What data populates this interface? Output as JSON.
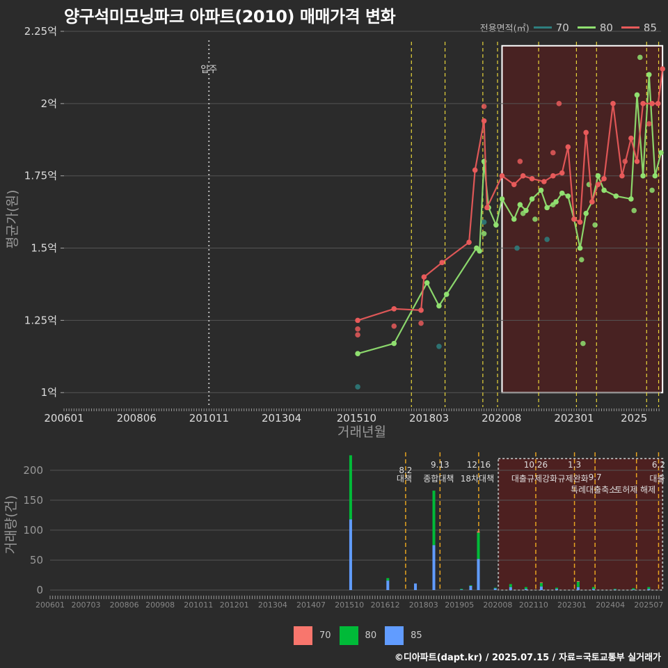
{
  "title": "양구석미모닝파크 아파트(2010) 매매가격 변화",
  "legend": {
    "title": "전용면적(㎡)",
    "items": [
      {
        "label": "70",
        "color": "#2e7f7f"
      },
      {
        "label": "80",
        "color": "#90e070"
      },
      {
        "label": "85",
        "color": "#e85a5a"
      }
    ]
  },
  "bar_legend": [
    {
      "label": "70",
      "color": "#f8766d"
    },
    {
      "label": "80",
      "color": "#00ba38"
    },
    {
      "label": "85",
      "color": "#619cff"
    }
  ],
  "credit": "©디아파트(dapt.kr) / 2025.07.15 / 자료=국토교통부 실거래가",
  "chart_data": [
    {
      "type": "line",
      "title": "양구석미모닝파크 아파트(2010) 매매가격 변화",
      "xlabel": "거래년월",
      "ylabel": "평균가(원)",
      "x_ticks": [
        "200601",
        "200806",
        "201011",
        "201304",
        "201510",
        "201803",
        "202008",
        "202301",
        "2025"
      ],
      "y_ticks": [
        "1억",
        "1.25억",
        "1.5억",
        "1.75억",
        "2억",
        "2.25억"
      ],
      "ylim": [
        0.95,
        2.25
      ],
      "y_unit": "억",
      "annotations": [
        {
          "label": "입주",
          "x": 2010.83
        }
      ],
      "policy_lines_x": [
        2017.58,
        2018.7,
        2019.96,
        2020.45,
        2021.82,
        2023.08,
        2023.75,
        2025.42,
        2025.82
      ],
      "highlight_box": {
        "x_from": 2020.6,
        "x_to": 2025.95,
        "y_from": 1.0,
        "y_to": 2.2
      },
      "series": [
        {
          "name": "70",
          "color": "#2e7f7f",
          "points": [
            {
              "x": 2015.79,
              "y": 1.02
            },
            {
              "x": 2018.5,
              "y": 1.16
            },
            {
              "x": 2020.0,
              "y": 1.59
            },
            {
              "x": 2021.1,
              "y": 1.5
            },
            {
              "x": 2022.1,
              "y": 1.53
            }
          ]
        },
        {
          "name": "80",
          "color": "#90e070",
          "line": [
            {
              "x": 2015.79,
              "y": 1.135
            },
            {
              "x": 2017.0,
              "y": 1.17
            },
            {
              "x": 2018.1,
              "y": 1.38
            },
            {
              "x": 2018.5,
              "y": 1.3
            },
            {
              "x": 2018.75,
              "y": 1.34
            },
            {
              "x": 2019.75,
              "y": 1.5
            },
            {
              "x": 2019.85,
              "y": 1.49
            },
            {
              "x": 2020.0,
              "y": 1.8
            },
            {
              "x": 2020.15,
              "y": 1.64
            },
            {
              "x": 2020.4,
              "y": 1.58
            },
            {
              "x": 2020.6,
              "y": 1.67
            },
            {
              "x": 2021.0,
              "y": 1.6
            },
            {
              "x": 2021.2,
              "y": 1.65
            },
            {
              "x": 2021.4,
              "y": 1.63
            },
            {
              "x": 2021.6,
              "y": 1.67
            },
            {
              "x": 2021.9,
              "y": 1.7
            },
            {
              "x": 2022.1,
              "y": 1.64
            },
            {
              "x": 2022.4,
              "y": 1.66
            },
            {
              "x": 2022.6,
              "y": 1.69
            },
            {
              "x": 2022.8,
              "y": 1.68
            },
            {
              "x": 2023.0,
              "y": 1.6
            },
            {
              "x": 2023.2,
              "y": 1.5
            },
            {
              "x": 2023.4,
              "y": 1.62
            },
            {
              "x": 2023.6,
              "y": 1.66
            },
            {
              "x": 2023.8,
              "y": 1.75
            },
            {
              "x": 2024.0,
              "y": 1.7
            },
            {
              "x": 2024.4,
              "y": 1.68
            },
            {
              "x": 2024.9,
              "y": 1.67
            },
            {
              "x": 2025.1,
              "y": 2.03
            },
            {
              "x": 2025.3,
              "y": 1.75
            },
            {
              "x": 2025.5,
              "y": 2.1
            },
            {
              "x": 2025.7,
              "y": 1.75
            },
            {
              "x": 2025.9,
              "y": 1.83
            }
          ],
          "points": [
            {
              "x": 2020.0,
              "y": 1.55
            },
            {
              "x": 2021.3,
              "y": 1.62
            },
            {
              "x": 2021.7,
              "y": 1.6
            },
            {
              "x": 2022.3,
              "y": 1.65
            },
            {
              "x": 2023.25,
              "y": 1.46
            },
            {
              "x": 2023.3,
              "y": 1.17
            },
            {
              "x": 2023.5,
              "y": 1.72
            },
            {
              "x": 2023.7,
              "y": 1.58
            },
            {
              "x": 2025.2,
              "y": 2.16
            },
            {
              "x": 2025.0,
              "y": 1.63
            },
            {
              "x": 2025.6,
              "y": 1.7
            }
          ]
        },
        {
          "name": "85",
          "color": "#e85a5a",
          "line": [
            {
              "x": 2015.79,
              "y": 1.25
            },
            {
              "x": 2017.0,
              "y": 1.29
            },
            {
              "x": 2017.9,
              "y": 1.285
            },
            {
              "x": 2018.0,
              "y": 1.4
            },
            {
              "x": 2018.6,
              "y": 1.45
            },
            {
              "x": 2019.5,
              "y": 1.52
            },
            {
              "x": 2019.7,
              "y": 1.77
            },
            {
              "x": 2020.0,
              "y": 1.94
            },
            {
              "x": 2020.1,
              "y": 1.64
            },
            {
              "x": 2020.6,
              "y": 1.75
            },
            {
              "x": 2021.0,
              "y": 1.72
            },
            {
              "x": 2021.3,
              "y": 1.75
            },
            {
              "x": 2021.6,
              "y": 1.74
            },
            {
              "x": 2022.0,
              "y": 1.73
            },
            {
              "x": 2022.3,
              "y": 1.75
            },
            {
              "x": 2022.6,
              "y": 1.76
            },
            {
              "x": 2022.8,
              "y": 1.85
            },
            {
              "x": 2023.0,
              "y": 1.6
            },
            {
              "x": 2023.2,
              "y": 1.59
            },
            {
              "x": 2023.4,
              "y": 1.9
            },
            {
              "x": 2023.6,
              "y": 1.66
            },
            {
              "x": 2023.8,
              "y": 1.72
            },
            {
              "x": 2024.0,
              "y": 1.74
            },
            {
              "x": 2024.3,
              "y": 2.0
            },
            {
              "x": 2024.6,
              "y": 1.75
            },
            {
              "x": 2024.9,
              "y": 1.88
            },
            {
              "x": 2025.1,
              "y": 1.8
            },
            {
              "x": 2025.3,
              "y": 2.0
            },
            {
              "x": 2025.6,
              "y": 2.0
            },
            {
              "x": 2025.8,
              "y": 2.0
            },
            {
              "x": 2025.95,
              "y": 2.12
            }
          ],
          "points": [
            {
              "x": 2015.79,
              "y": 1.2
            },
            {
              "x": 2015.79,
              "y": 1.22
            },
            {
              "x": 2017.0,
              "y": 1.23
            },
            {
              "x": 2017.9,
              "y": 1.24
            },
            {
              "x": 2020.0,
              "y": 1.99
            },
            {
              "x": 2021.2,
              "y": 1.8
            },
            {
              "x": 2022.5,
              "y": 2.0
            },
            {
              "x": 2022.3,
              "y": 1.83
            },
            {
              "x": 2024.7,
              "y": 1.8
            },
            {
              "x": 2025.5,
              "y": 1.93
            }
          ]
        }
      ]
    },
    {
      "type": "bar",
      "stacked": true,
      "xlabel": "",
      "ylabel": "거래량(건)",
      "x_ticks": [
        "200601",
        "200703",
        "200806",
        "200908",
        "201011",
        "201201",
        "201304",
        "201407",
        "201510",
        "201612",
        "201803",
        "201905",
        "202008",
        "202110",
        "202301",
        "202404",
        "202507"
      ],
      "y_ticks": [
        0,
        50,
        100,
        150,
        200
      ],
      "ylim": [
        0,
        230
      ],
      "policies": [
        {
          "date": "8.2",
          "label": "대책",
          "x": 2017.58
        },
        {
          "date": "9.13",
          "label": "종합대책",
          "x": 2018.7
        },
        {
          "date": "12.16",
          "label": "18차대책",
          "x": 2019.96
        },
        {
          "date": "10.26",
          "label": "대출규제강화",
          "x": 2021.82
        },
        {
          "date": "1.3",
          "label": "규제완화",
          "x": 2023.08
        },
        {
          "date": "9.7",
          "label": "특례대출축소",
          "x": 2023.75
        },
        {
          "date": "",
          "label": "토허제 해제",
          "x": 2025.1
        },
        {
          "date": "6.2",
          "label": "대출",
          "x": 2025.82
        }
      ],
      "series": [
        {
          "name": "70",
          "color": "#f8766d"
        },
        {
          "name": "80",
          "color": "#00ba38"
        },
        {
          "name": "85",
          "color": "#619cff"
        }
      ],
      "bars": [
        {
          "x": 2015.79,
          "values": [
            0,
            107,
            118
          ]
        },
        {
          "x": 2017.0,
          "values": [
            0,
            4,
            16
          ]
        },
        {
          "x": 2017.9,
          "values": [
            0,
            0,
            11
          ]
        },
        {
          "x": 2018.5,
          "values": [
            0,
            91,
            75
          ]
        },
        {
          "x": 2019.4,
          "values": [
            0,
            1,
            1
          ]
        },
        {
          "x": 2019.7,
          "values": [
            0,
            1,
            7
          ]
        },
        {
          "x": 2019.95,
          "values": [
            2,
            44,
            52
          ]
        },
        {
          "x": 2020.5,
          "values": [
            0,
            1,
            3
          ]
        },
        {
          "x": 2021.0,
          "values": [
            0,
            5,
            5
          ]
        },
        {
          "x": 2021.5,
          "values": [
            0,
            3,
            2
          ]
        },
        {
          "x": 2022.0,
          "values": [
            1,
            6,
            6
          ]
        },
        {
          "x": 2022.5,
          "values": [
            0,
            2,
            2
          ]
        },
        {
          "x": 2023.2,
          "values": [
            1,
            9,
            5
          ]
        },
        {
          "x": 2023.7,
          "values": [
            0,
            3,
            2
          ]
        },
        {
          "x": 2024.4,
          "values": [
            0,
            1,
            1
          ]
        },
        {
          "x": 2025.0,
          "values": [
            0,
            2,
            1
          ]
        },
        {
          "x": 2025.5,
          "values": [
            0,
            3,
            2
          ]
        }
      ]
    }
  ]
}
